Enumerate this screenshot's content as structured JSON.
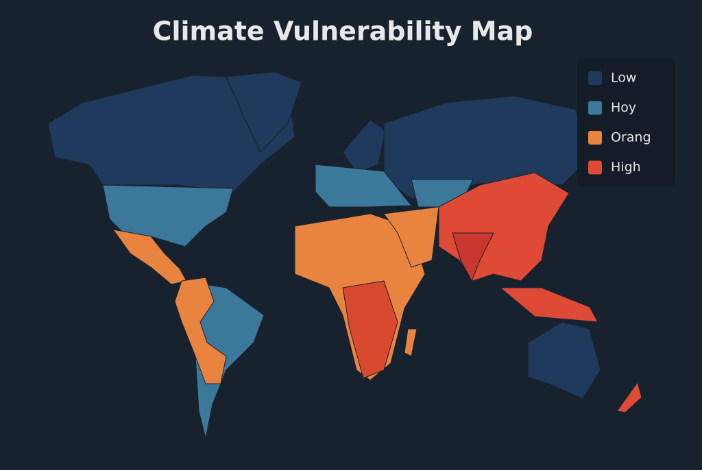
{
  "header": {
    "title": "Climate Vulnerability Map"
  },
  "legend": {
    "items": [
      {
        "label": "Low",
        "color": "#1f3a5c"
      },
      {
        "label": "Hoy",
        "color": "#3b7899"
      },
      {
        "label": "Orang",
        "color": "#e8843f"
      },
      {
        "label": "High",
        "color": "#de4a36"
      }
    ]
  }
}
